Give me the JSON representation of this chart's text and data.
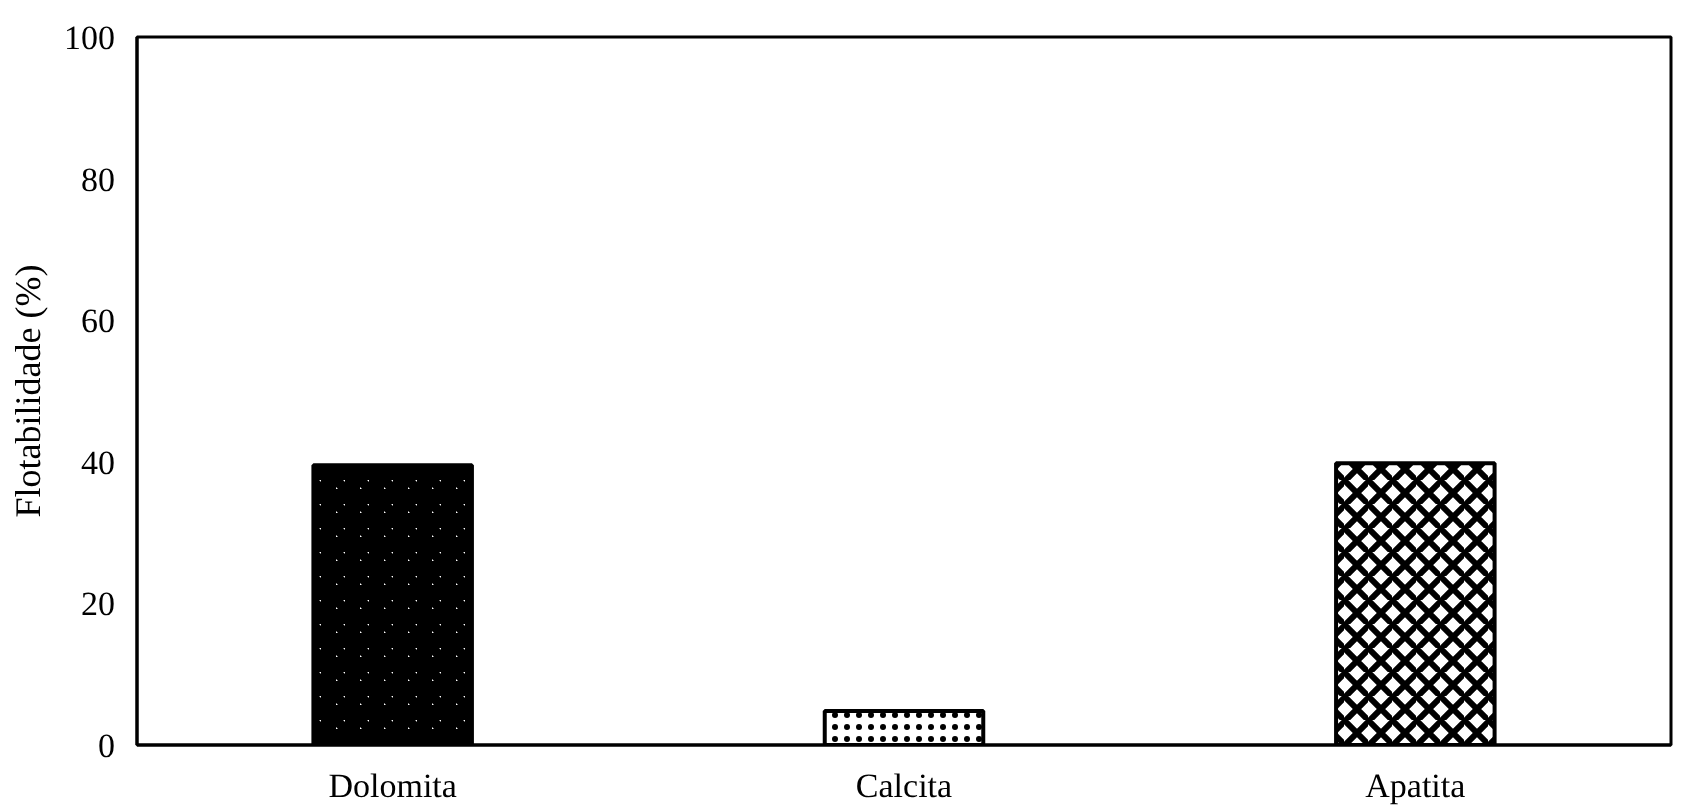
{
  "chart_data": {
    "type": "bar",
    "ylabel": "Flotabilidade (%)",
    "categories": [
      "Dolomita",
      "Calcita",
      "Apatita"
    ],
    "values": [
      39.5,
      4.8,
      39.8
    ],
    "colors": [
      "#000000",
      "#000000",
      "#000000"
    ],
    "ylim": [
      0,
      100
    ],
    "yticks": [
      0,
      20,
      40,
      60,
      80,
      100
    ],
    "grid": false
  }
}
